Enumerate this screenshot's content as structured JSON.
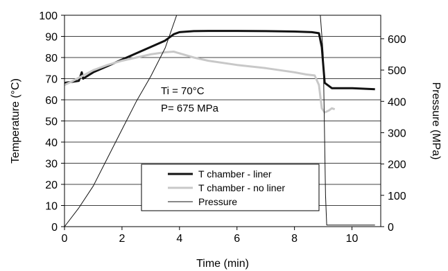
{
  "chart_data": {
    "type": "line",
    "xlabel": "Time (min)",
    "ylabel_left": "Temperature (°C)",
    "ylabel_right": "Pressure (MPa)",
    "xlim": [
      0,
      11
    ],
    "ylim_left": [
      0,
      100
    ],
    "ylim_right": [
      0,
      675
    ],
    "x_ticks": [
      0,
      2,
      4,
      6,
      8,
      10
    ],
    "y_left_ticks": [
      0,
      10,
      20,
      30,
      40,
      50,
      60,
      70,
      80,
      90,
      100
    ],
    "y_right_ticks": [
      0,
      100,
      200,
      300,
      400,
      500,
      600
    ],
    "grid": "horizontal",
    "legend_position": "lower-center",
    "annotations": [
      "Ti = 70°C",
      "P= 675 MPa"
    ],
    "colors": {
      "liner": "#111111",
      "no_liner": "#c8c8c8",
      "pressure": "#111111",
      "grid": "#000000"
    },
    "series": [
      {
        "name": "T chamber - liner",
        "axis": "left",
        "x": [
          0,
          0.5,
          0.6,
          0.65,
          1,
          1.5,
          2,
          2.5,
          3,
          3.5,
          3.8,
          4,
          4.5,
          5,
          6,
          7,
          8,
          8.6,
          8.85,
          8.95,
          9.05,
          9.3,
          10,
          10.8
        ],
        "y": [
          68,
          69,
          73,
          70,
          73,
          76,
          79,
          82,
          85,
          88,
          91,
          92,
          92.5,
          92.6,
          92.6,
          92.5,
          92.3,
          92,
          91.5,
          85,
          68,
          65.5,
          65.5,
          65
        ]
      },
      {
        "name": "T chamber - no liner",
        "axis": "left",
        "x": [
          0,
          0.3,
          1,
          1.5,
          2,
          2.5,
          3,
          3.5,
          3.8,
          4,
          4.5,
          5,
          6,
          7,
          8,
          8.4,
          8.7,
          8.85,
          8.95,
          9.05,
          9.2,
          9.3,
          9.4
        ],
        "y": [
          67,
          69,
          74,
          76.5,
          78.5,
          80,
          81.5,
          82.5,
          82.8,
          82,
          80,
          78.5,
          76.5,
          75,
          73,
          72,
          71.5,
          67,
          56,
          54,
          55,
          56,
          55.5
        ]
      },
      {
        "name": "Pressure",
        "axis": "right",
        "x": [
          0,
          0.5,
          1,
          1.5,
          2,
          2.5,
          3,
          3.5,
          3.9,
          8.9,
          9.0,
          9.08,
          9.12,
          10.8
        ],
        "y": [
          0,
          60,
          130,
          220,
          310,
          400,
          480,
          570,
          675,
          675,
          550,
          100,
          5,
          5
        ]
      }
    ]
  }
}
